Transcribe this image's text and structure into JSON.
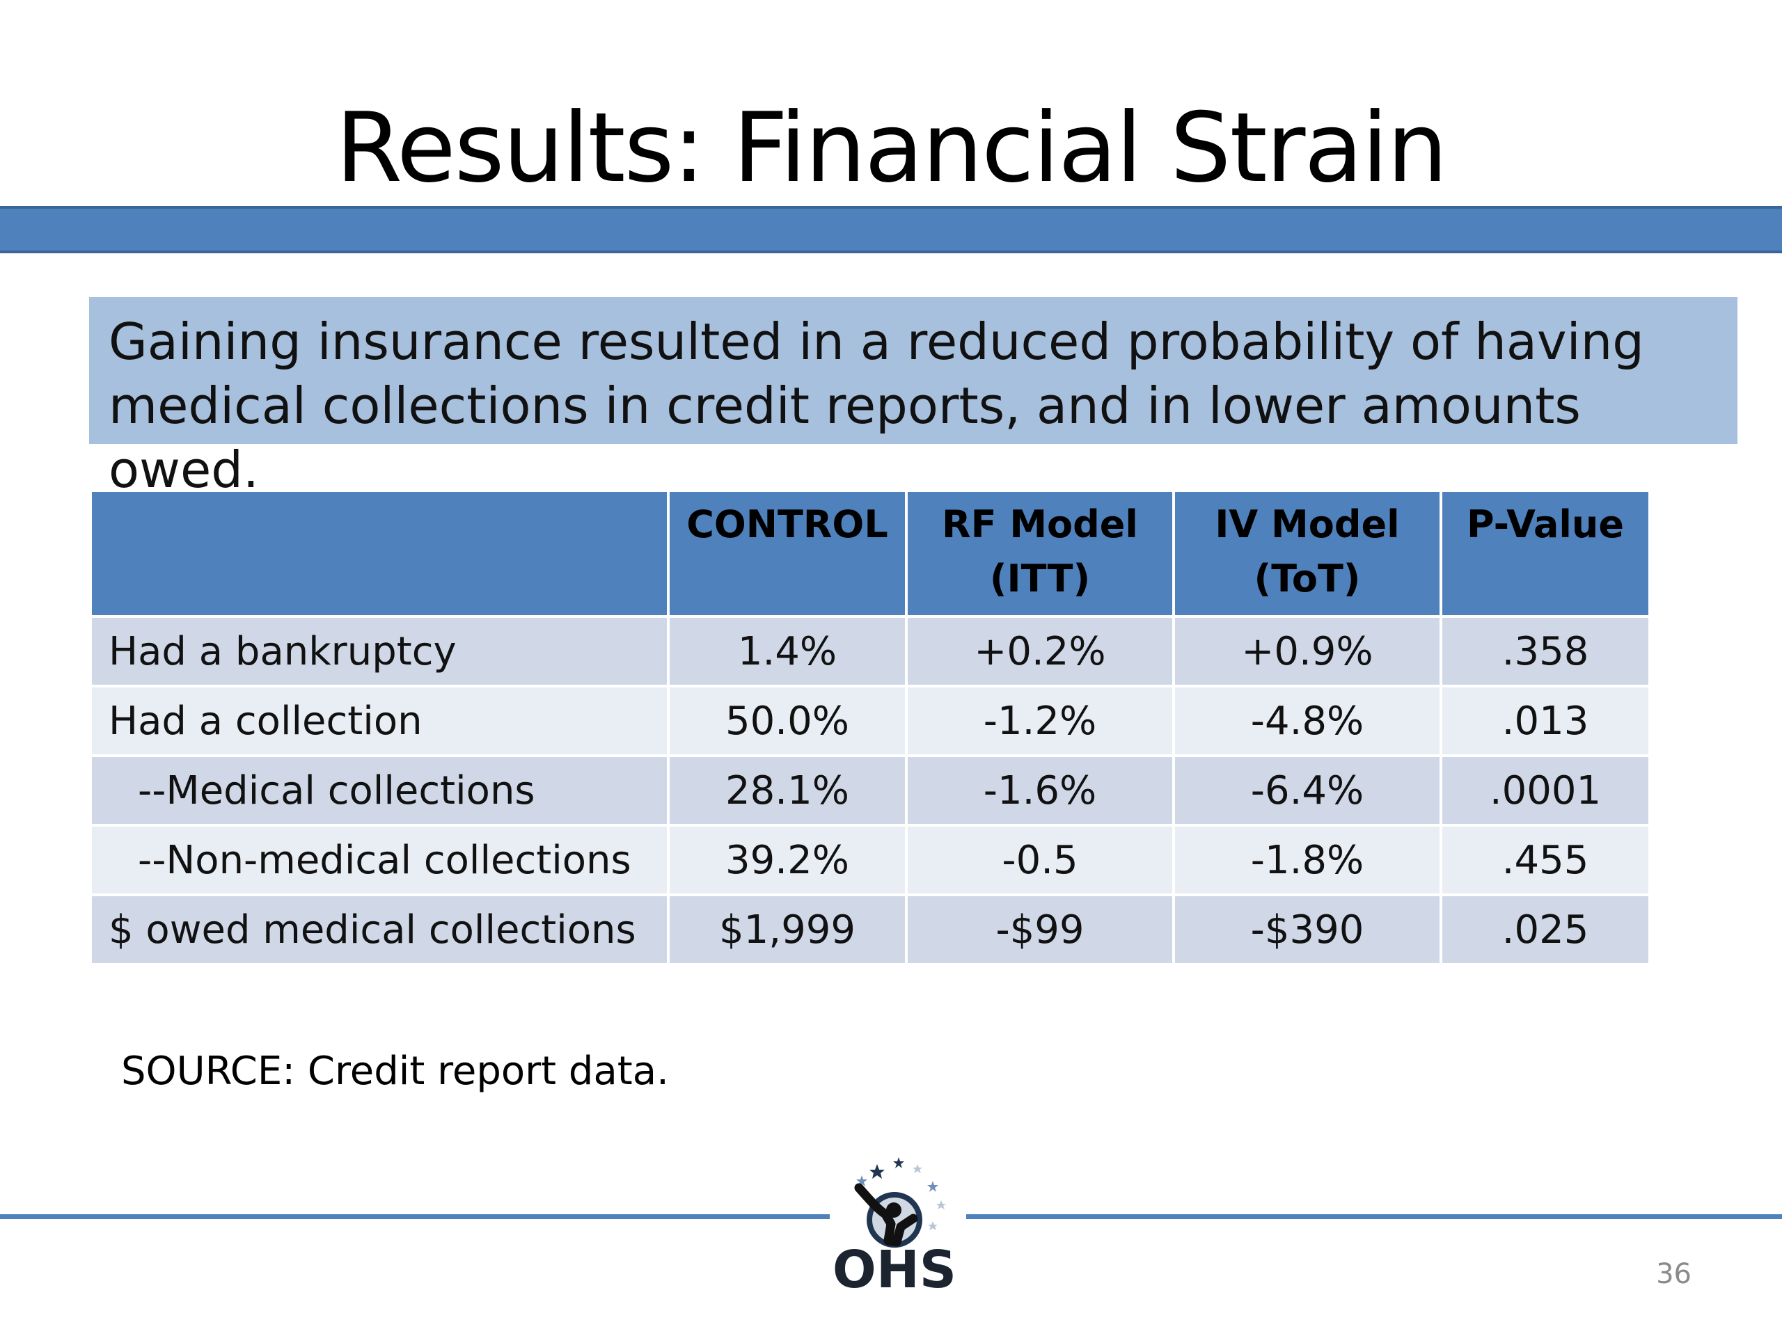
{
  "slide": {
    "title": "Results: Financial Strain",
    "callout": "Gaining insurance resulted in a reduced probability of having medical collections in credit reports, and in lower amounts owed.",
    "source": "SOURCE: Credit report data.",
    "page_number": "36",
    "logo_text": "OHS",
    "colors": {
      "accent": "#4f81bd",
      "callout_bg": "#a7c0de",
      "row_dark": "#d0d8e8",
      "row_light": "#e9edf4"
    }
  },
  "table": {
    "headers": [
      "",
      "CONTROL",
      "RF Model\n(ITT)",
      "IV Model\n(ToT)",
      "P-Value"
    ],
    "rows": [
      {
        "label": "Had a bankruptcy",
        "control": "1.4%",
        "rf": "+0.2%",
        "iv": "+0.9%",
        "p": ".358",
        "indent": false
      },
      {
        "label": "Had a collection",
        "control": "50.0%",
        "rf": "-1.2%",
        "iv": "-4.8%",
        "p": ".013",
        "indent": false
      },
      {
        "label": "--Medical collections",
        "control": "28.1%",
        "rf": "-1.6%",
        "iv": "-6.4%",
        "p": ".0001",
        "indent": true
      },
      {
        "label": "--Non-medical collections",
        "control": "39.2%",
        "rf": "-0.5",
        "iv": "-1.8%",
        "p": ".455",
        "indent": true
      },
      {
        "label": "$ owed medical collections",
        "control": "$1,999",
        "rf": "-$99",
        "iv": "-$390",
        "p": ".025",
        "indent": false
      }
    ]
  }
}
